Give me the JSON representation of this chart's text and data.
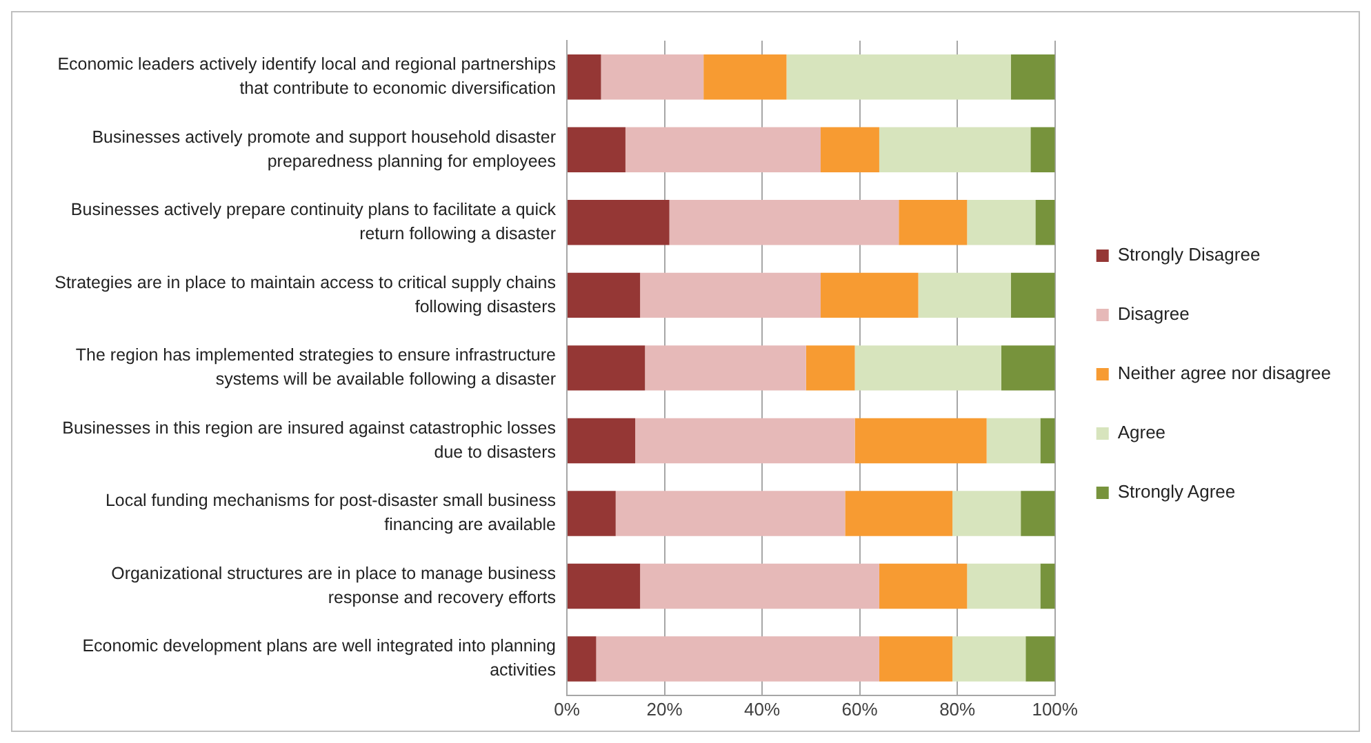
{
  "chart_data": {
    "type": "bar",
    "orientation": "horizontal",
    "stacked": true,
    "categories": [
      "Economic leaders actively identify local and regional partnerships that contribute to economic diversification",
      "Businesses actively promote and support household disaster preparedness planning for employees",
      "Businesses actively prepare continuity plans to facilitate a quick return following a disaster",
      "Strategies are in place to maintain access to critical supply chains following disasters",
      "The region has implemented strategies to ensure infrastructure systems will be available following a disaster",
      "Businesses in this region are insured against catastrophic losses due to disasters",
      "Local funding mechanisms for post-disaster small business financing are available",
      "Organizational structures are in place to manage business response and recovery efforts",
      "Economic development plans are well integrated into planning activities"
    ],
    "series": [
      {
        "name": "Strongly Disagree",
        "color": "#953735",
        "values": [
          7,
          12,
          21,
          15,
          16,
          14,
          10,
          15,
          6
        ]
      },
      {
        "name": "Disagree",
        "color": "#e6b9b8",
        "values": [
          21,
          40,
          47,
          37,
          33,
          45,
          47,
          49,
          58
        ]
      },
      {
        "name": "Neither agree nor disagree",
        "color": "#f79b32",
        "values": [
          17,
          12,
          14,
          20,
          10,
          27,
          22,
          18,
          15
        ]
      },
      {
        "name": "Agree",
        "color": "#d7e4bd",
        "values": [
          46,
          31,
          14,
          19,
          30,
          11,
          14,
          15,
          15
        ]
      },
      {
        "name": "Strongly Agree",
        "color": "#77933c",
        "values": [
          9,
          5,
          4,
          9,
          11,
          3,
          7,
          3,
          6
        ]
      }
    ],
    "xlim": [
      0,
      100
    ],
    "xticks": [
      {
        "value": 0,
        "label": "0%"
      },
      {
        "value": 20,
        "label": "20%"
      },
      {
        "value": 40,
        "label": "40%"
      },
      {
        "value": 60,
        "label": "60%"
      },
      {
        "value": 80,
        "label": "80%"
      },
      {
        "value": 100,
        "label": "100%"
      }
    ],
    "grid": "x",
    "legend": "right"
  }
}
